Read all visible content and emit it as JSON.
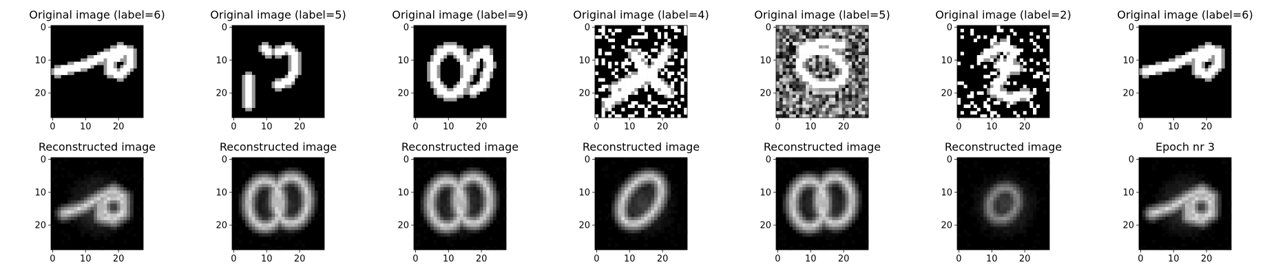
{
  "chart_data": {
    "type": "image-grid",
    "rows": 2,
    "columns": 7,
    "image_size": [
      28,
      28
    ],
    "colormap": "gray",
    "axis": {
      "x_ticks": [
        0,
        10,
        20
      ],
      "y_ticks": [
        0,
        10,
        20
      ],
      "xlim": [
        -0.5,
        27.5
      ],
      "ylim": [
        27.5,
        -0.5
      ]
    },
    "panels": [
      {
        "title": "Original image (label=6)",
        "row": 0,
        "col": 0,
        "content": "digit-6",
        "noise": 0.0
      },
      {
        "title": "Original image (label=5)",
        "row": 0,
        "col": 1,
        "content": "digit-5-fragmented",
        "noise": 0.0
      },
      {
        "title": "Original image (label=9)",
        "row": 0,
        "col": 2,
        "content": "digit-9-loop",
        "noise": 0.0
      },
      {
        "title": "Original image (label=4)",
        "row": 0,
        "col": 3,
        "content": "digit-4",
        "noise": 0.25
      },
      {
        "title": "Original image (label=5)",
        "row": 0,
        "col": 4,
        "content": "digit-5",
        "noise": 0.6
      },
      {
        "title": "Original image (label=2)",
        "row": 0,
        "col": 5,
        "content": "digit-2",
        "noise": 0.18
      },
      {
        "title": "Original image (label=6)",
        "row": 0,
        "col": 6,
        "content": "digit-6",
        "noise": 0.0
      },
      {
        "title": "Reconstructed image",
        "row": 1,
        "col": 0,
        "content": "blur-6",
        "noise": 0.0
      },
      {
        "title": "Reconstructed image",
        "row": 1,
        "col": 1,
        "content": "blur-double-loop",
        "noise": 0.0
      },
      {
        "title": "Reconstructed image",
        "row": 1,
        "col": 2,
        "content": "blur-double-loop",
        "noise": 0.0
      },
      {
        "title": "Reconstructed image",
        "row": 1,
        "col": 3,
        "content": "blur-zero",
        "noise": 0.0
      },
      {
        "title": "Reconstructed image",
        "row": 1,
        "col": 4,
        "content": "blur-double-loop",
        "noise": 0.0
      },
      {
        "title": "Reconstructed image",
        "row": 1,
        "col": 5,
        "content": "blur-faint",
        "noise": 0.0
      },
      {
        "title": "Epoch nr 3",
        "row": 1,
        "col": 6,
        "content": "blur-6",
        "noise": 0.0
      }
    ]
  }
}
